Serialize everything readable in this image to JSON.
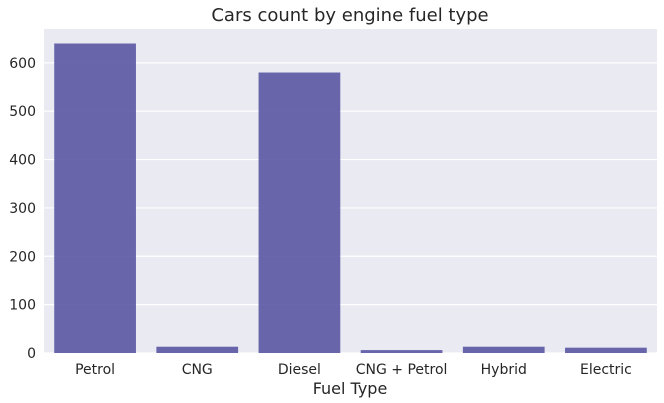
{
  "chart_data": {
    "type": "bar",
    "title": "Cars count by engine fuel type",
    "xlabel": "Fuel Type",
    "ylabel": "",
    "categories": [
      "Petrol",
      "CNG",
      "Diesel",
      "CNG + Petrol",
      "Hybrid",
      "Electric"
    ],
    "values": [
      640,
      13,
      580,
      6,
      13,
      11
    ],
    "ylim": [
      0,
      670
    ],
    "yticks": [
      0,
      100,
      200,
      300,
      400,
      500,
      600
    ],
    "ytick_labels": [
      "0",
      "100",
      "200",
      "300",
      "400",
      "500",
      "600"
    ],
    "grid": true,
    "bar_color": "#5a57a3",
    "background_color": "#eaeaf2",
    "grid_color": "#ffffff"
  }
}
